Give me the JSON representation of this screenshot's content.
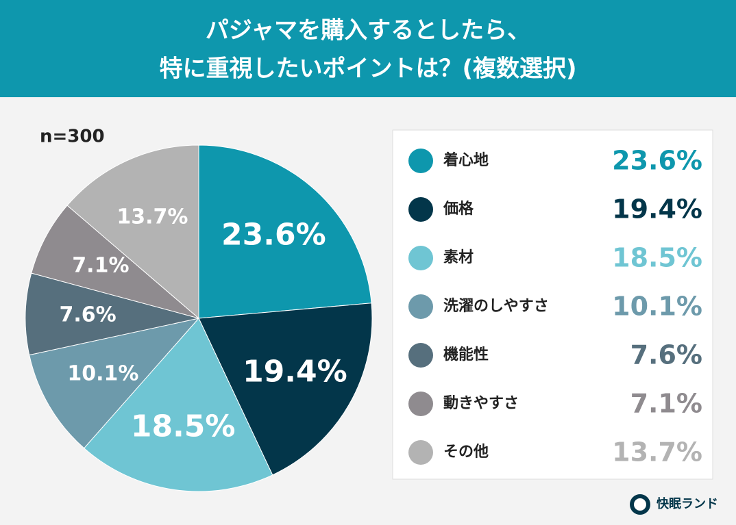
{
  "chart_data": {
    "type": "pie",
    "title": [
      "パジャマを購入するとしたら、",
      "特に重視したいポイントは？(複数選択)"
    ],
    "annotation": "n=300",
    "categories": [
      "着心地",
      "価格",
      "素材",
      "洗濯のしやすさ",
      "機能性",
      "動きやすさ",
      "その他"
    ],
    "values": [
      23.6,
      19.4,
      18.5,
      10.1,
      7.6,
      7.1,
      13.7
    ],
    "value_labels": [
      "23.6%",
      "19.4%",
      "18.5%",
      "10.1%",
      "7.6%",
      "7.1%",
      "13.7%"
    ],
    "colors": [
      "#0e97ad",
      "#03364a",
      "#6fc5d3",
      "#6d9aab",
      "#566f7d",
      "#8f8b8f",
      "#b3b3b3"
    ]
  },
  "brand": "快眠ランド"
}
